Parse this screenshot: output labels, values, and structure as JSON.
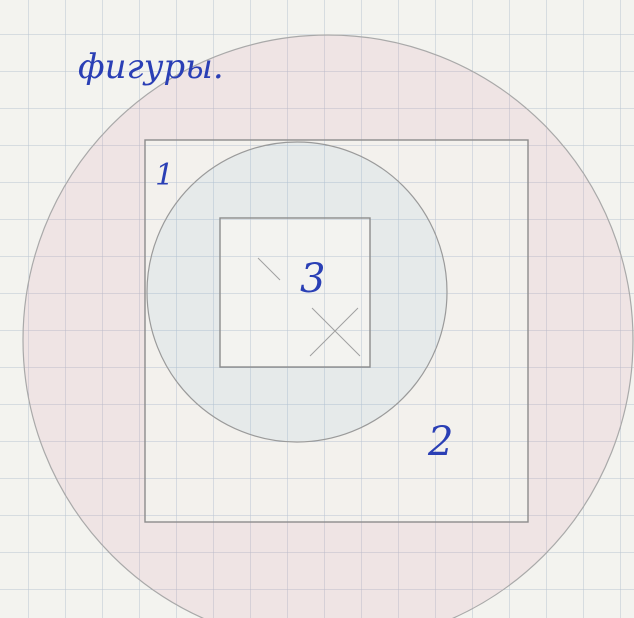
{
  "header": {
    "title": "фигуры."
  },
  "shapes": [
    {
      "label": "1"
    },
    {
      "label": "2"
    },
    {
      "label": "3"
    }
  ]
}
